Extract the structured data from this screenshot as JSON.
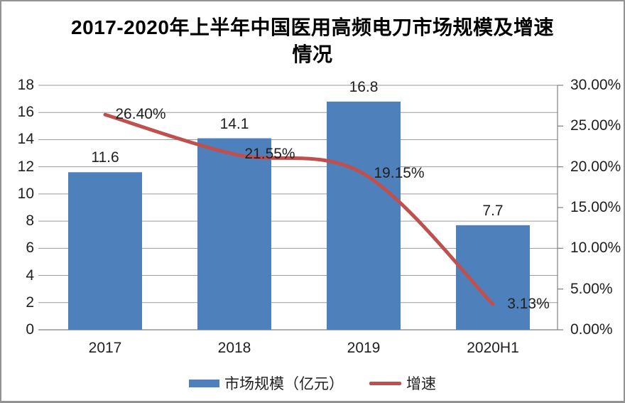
{
  "chart_data": {
    "type": "bar+line",
    "title": "2017-2020年上半年中国医用高频电刀市场规模及增速情况",
    "title_lines": [
      "2017-2020年上半年中国医用高频电刀市场规模及增速",
      "情况"
    ],
    "categories": [
      "2017",
      "2018",
      "2019",
      "2020H1"
    ],
    "series": [
      {
        "name": "市场规模（亿元）",
        "type": "bar",
        "axis": "left",
        "color": "#4E80BC",
        "values": [
          11.6,
          14.1,
          16.8,
          7.7
        ],
        "labels": [
          "11.6",
          "14.1",
          "16.8",
          "7.7"
        ]
      },
      {
        "name": "增速",
        "type": "line",
        "axis": "right",
        "color": "#C0504D",
        "values": [
          26.4,
          21.55,
          19.15,
          3.13
        ],
        "labels": [
          "26.40%",
          "21.55%",
          "19.15%",
          "3.13%"
        ]
      }
    ],
    "left_axis": {
      "min": 0,
      "max": 18,
      "step": 2,
      "ticks": [
        "0",
        "2",
        "4",
        "6",
        "8",
        "10",
        "12",
        "14",
        "16",
        "18"
      ]
    },
    "right_axis": {
      "min": 0,
      "max": 30,
      "step": 5,
      "ticks": [
        "0.00%",
        "5.00%",
        "10.00%",
        "15.00%",
        "20.00%",
        "25.00%",
        "30.00%"
      ]
    },
    "legend": [
      "市场规模（亿元）",
      "增速"
    ],
    "grid": "horizontal",
    "legend_position": "bottom",
    "colors": {
      "bar": "#4E80BC",
      "line": "#C0504D",
      "gridline": "#9A9A9A",
      "axis": "#7F7F7F",
      "text": "#202020"
    }
  }
}
